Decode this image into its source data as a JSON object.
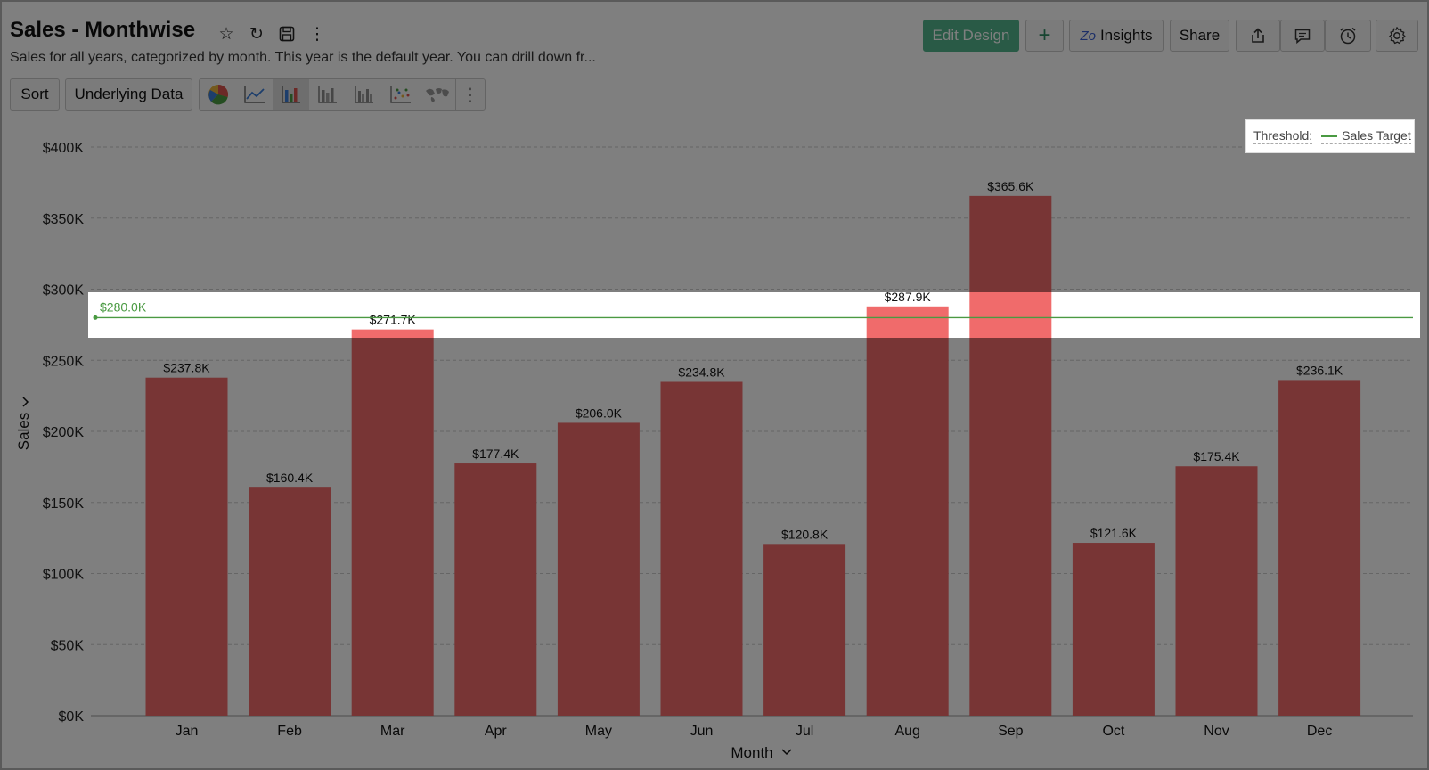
{
  "header": {
    "title": "Sales - Monthwise",
    "subtitle": "Sales for all years, categorized by month. This year is the default year. You can drill down fr...",
    "icons": [
      "star-icon",
      "refresh-icon",
      "save-icon",
      "more-vertical-icon"
    ]
  },
  "toolbar": {
    "sort_label": "Sort",
    "underlying_data_label": "Underlying Data",
    "chart_types": [
      "pie-chart-icon",
      "line-chart-icon",
      "bar-chart-icon",
      "stacked-bar-icon",
      "grouped-bar-icon",
      "scatter-icon",
      "map-icon"
    ],
    "active_chart_type": "bar-chart-icon"
  },
  "actions": {
    "edit_design_label": "Edit Design",
    "add_icon": "plus-icon",
    "insights_label": "Insights",
    "share_label": "Share",
    "icons": [
      "export-icon",
      "comment-icon",
      "alarm-icon",
      "settings-icon"
    ]
  },
  "legend": {
    "threshold_label": "Threshold:",
    "entry": "Sales Target",
    "color": "#4a9a42"
  },
  "colors": {
    "bar": "#f06b6b",
    "bar_highlight": "#f06b6b",
    "threshold": "#4a9a42",
    "primary_button": "#52b58c"
  },
  "chart_data": {
    "type": "bar",
    "categories": [
      "Jan",
      "Feb",
      "Mar",
      "Apr",
      "May",
      "Jun",
      "Jul",
      "Aug",
      "Sep",
      "Oct",
      "Nov",
      "Dec"
    ],
    "values": [
      237.8,
      160.4,
      271.7,
      177.4,
      206.0,
      234.8,
      120.8,
      287.9,
      365.6,
      121.6,
      175.4,
      236.1
    ],
    "value_labels": [
      "$237.8K",
      "$160.4K",
      "$271.7K",
      "$177.4K",
      "$206.0K",
      "$234.8K",
      "$120.8K",
      "$287.9K",
      "$365.6K",
      "$121.6K",
      "$175.4K",
      "$236.1K"
    ],
    "units": "K",
    "xlabel": "Month",
    "ylabel": "Sales",
    "ylim": [
      0,
      400
    ],
    "yticks": [
      0,
      50,
      100,
      150,
      200,
      250,
      300,
      350,
      400
    ],
    "ytick_labels": [
      "$0K",
      "$50K",
      "$100K",
      "$150K",
      "$200K",
      "$250K",
      "$300K",
      "$350K",
      "$400K"
    ],
    "threshold": {
      "value": 280.0,
      "label": "$280.0K",
      "name": "Sales Target"
    },
    "grid": true,
    "legend": "top-right"
  }
}
